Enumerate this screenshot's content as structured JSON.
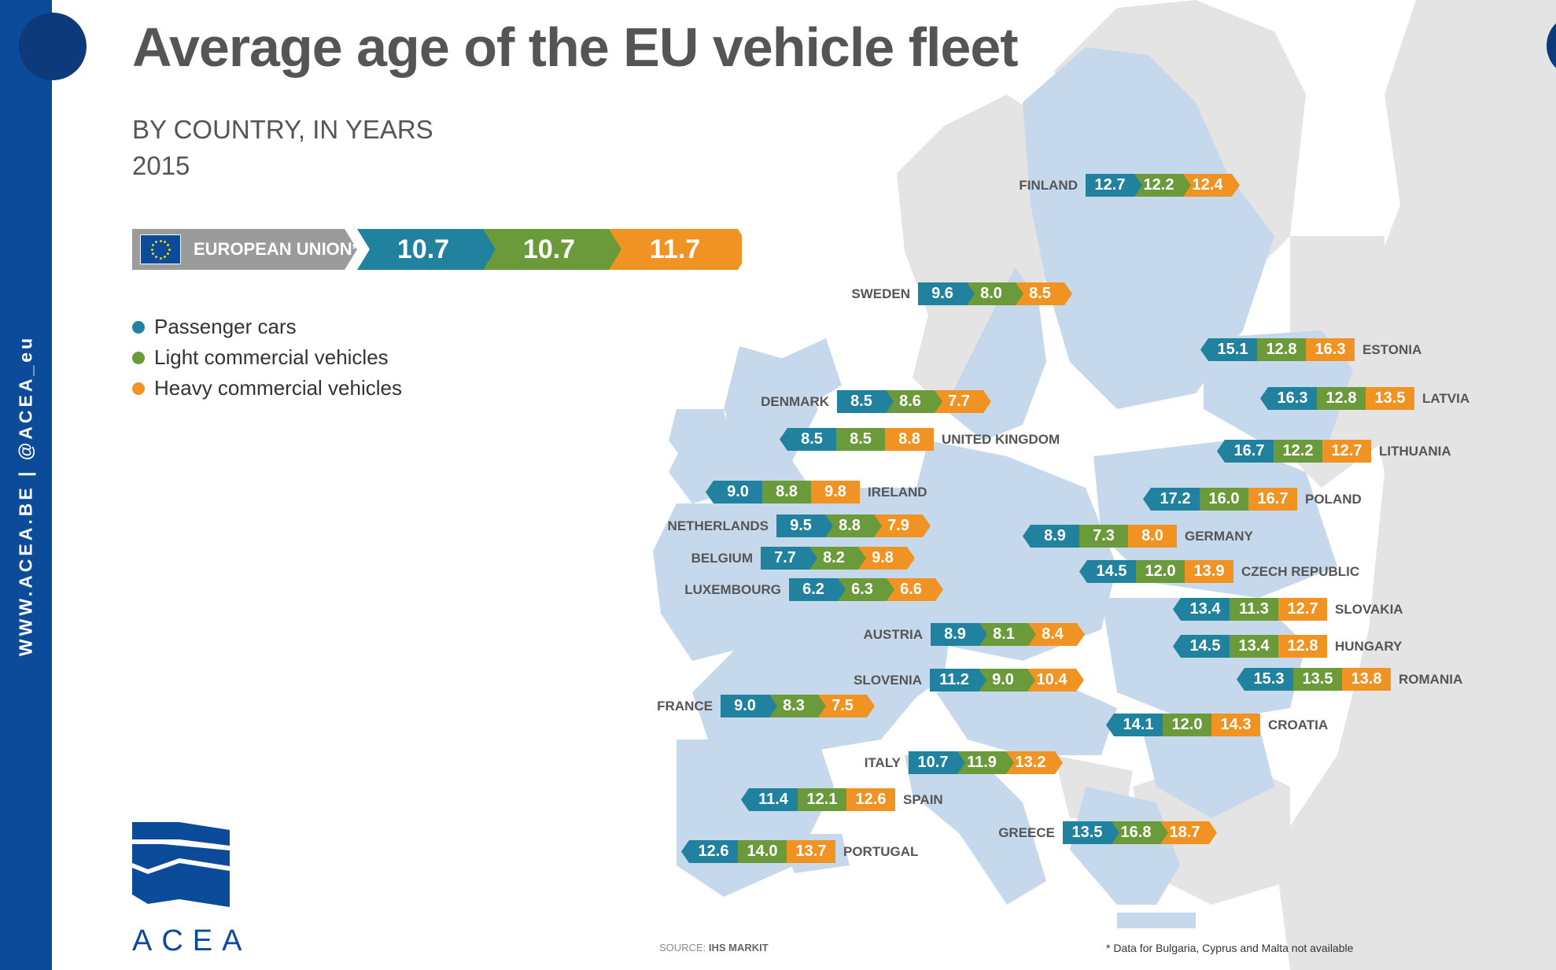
{
  "title": "Average age of the EU vehicle fleet",
  "subtitle_line1": "BY COUNTRY, IN YEARS",
  "subtitle_line2": "2015",
  "side_text": "WWW.ACEA.BE | @ACEA_eu",
  "colors": {
    "passenger": "#21829f",
    "light": "#6a9a3a",
    "heavy": "#f19322",
    "brand_blue": "#0b4b9a",
    "map_land": "#c6d9ec",
    "map_other": "#e4e4e4"
  },
  "icons": [
    "eu-flag-icon",
    "acea-logo-icon"
  ],
  "eu": {
    "label": "EUROPEAN UNION*",
    "values": [
      "10.7",
      "10.7",
      "11.7"
    ]
  },
  "legend": [
    {
      "label": "Passenger cars",
      "color": "#21829f"
    },
    {
      "label": "Light commercial vehicles",
      "color": "#6a9a3a"
    },
    {
      "label": "Heavy commercial vehicles",
      "color": "#f19322"
    }
  ],
  "countries": [
    {
      "name": "FINLAND",
      "values": [
        "12.7",
        "12.2",
        "12.4"
      ]
    },
    {
      "name": "SWEDEN",
      "values": [
        "9.6",
        "8.0",
        "8.5"
      ]
    },
    {
      "name": "ESTONIA",
      "values": [
        "15.1",
        "12.8",
        "16.3"
      ]
    },
    {
      "name": "LATVIA",
      "values": [
        "16.3",
        "12.8",
        "13.5"
      ]
    },
    {
      "name": "DENMARK",
      "values": [
        "8.5",
        "8.6",
        "7.7"
      ]
    },
    {
      "name": "UNITED KINGDOM",
      "values": [
        "8.5",
        "8.5",
        "8.8"
      ]
    },
    {
      "name": "LITHUANIA",
      "values": [
        "16.7",
        "12.2",
        "12.7"
      ]
    },
    {
      "name": "IRELAND",
      "values": [
        "9.0",
        "8.8",
        "9.8"
      ]
    },
    {
      "name": "POLAND",
      "values": [
        "17.2",
        "16.0",
        "16.7"
      ]
    },
    {
      "name": "NETHERLANDS",
      "values": [
        "9.5",
        "8.8",
        "7.9"
      ]
    },
    {
      "name": "GERMANY",
      "values": [
        "8.9",
        "7.3",
        "8.0"
      ]
    },
    {
      "name": "BELGIUM",
      "values": [
        "7.7",
        "8.2",
        "9.8"
      ]
    },
    {
      "name": "CZECH REPUBLIC",
      "values": [
        "14.5",
        "12.0",
        "13.9"
      ]
    },
    {
      "name": "LUXEMBOURG",
      "values": [
        "6.2",
        "6.3",
        "6.6"
      ]
    },
    {
      "name": "SLOVAKIA",
      "values": [
        "13.4",
        "11.3",
        "12.7"
      ]
    },
    {
      "name": "AUSTRIA",
      "values": [
        "8.9",
        "8.1",
        "8.4"
      ]
    },
    {
      "name": "HUNGARY",
      "values": [
        "14.5",
        "13.4",
        "12.8"
      ]
    },
    {
      "name": "SLOVENIA",
      "values": [
        "11.2",
        "9.0",
        "10.4"
      ]
    },
    {
      "name": "ROMANIA",
      "values": [
        "15.3",
        "13.5",
        "13.8"
      ]
    },
    {
      "name": "FRANCE",
      "values": [
        "9.0",
        "8.3",
        "7.5"
      ]
    },
    {
      "name": "CROATIA",
      "values": [
        "14.1",
        "12.0",
        "14.3"
      ]
    },
    {
      "name": "ITALY",
      "values": [
        "10.7",
        "11.9",
        "13.2"
      ]
    },
    {
      "name": "SPAIN",
      "values": [
        "11.4",
        "12.1",
        "12.6"
      ]
    },
    {
      "name": "GREECE",
      "values": [
        "13.5",
        "16.8",
        "18.7"
      ]
    },
    {
      "name": "PORTUGAL",
      "values": [
        "12.6",
        "14.0",
        "13.7"
      ]
    }
  ],
  "source_prefix": "SOURCE: ",
  "source_name": "IHS MARKIT",
  "footnote": "* Data for Bulgaria, Cyprus and Malta not available",
  "logo_text": "ACEA"
}
